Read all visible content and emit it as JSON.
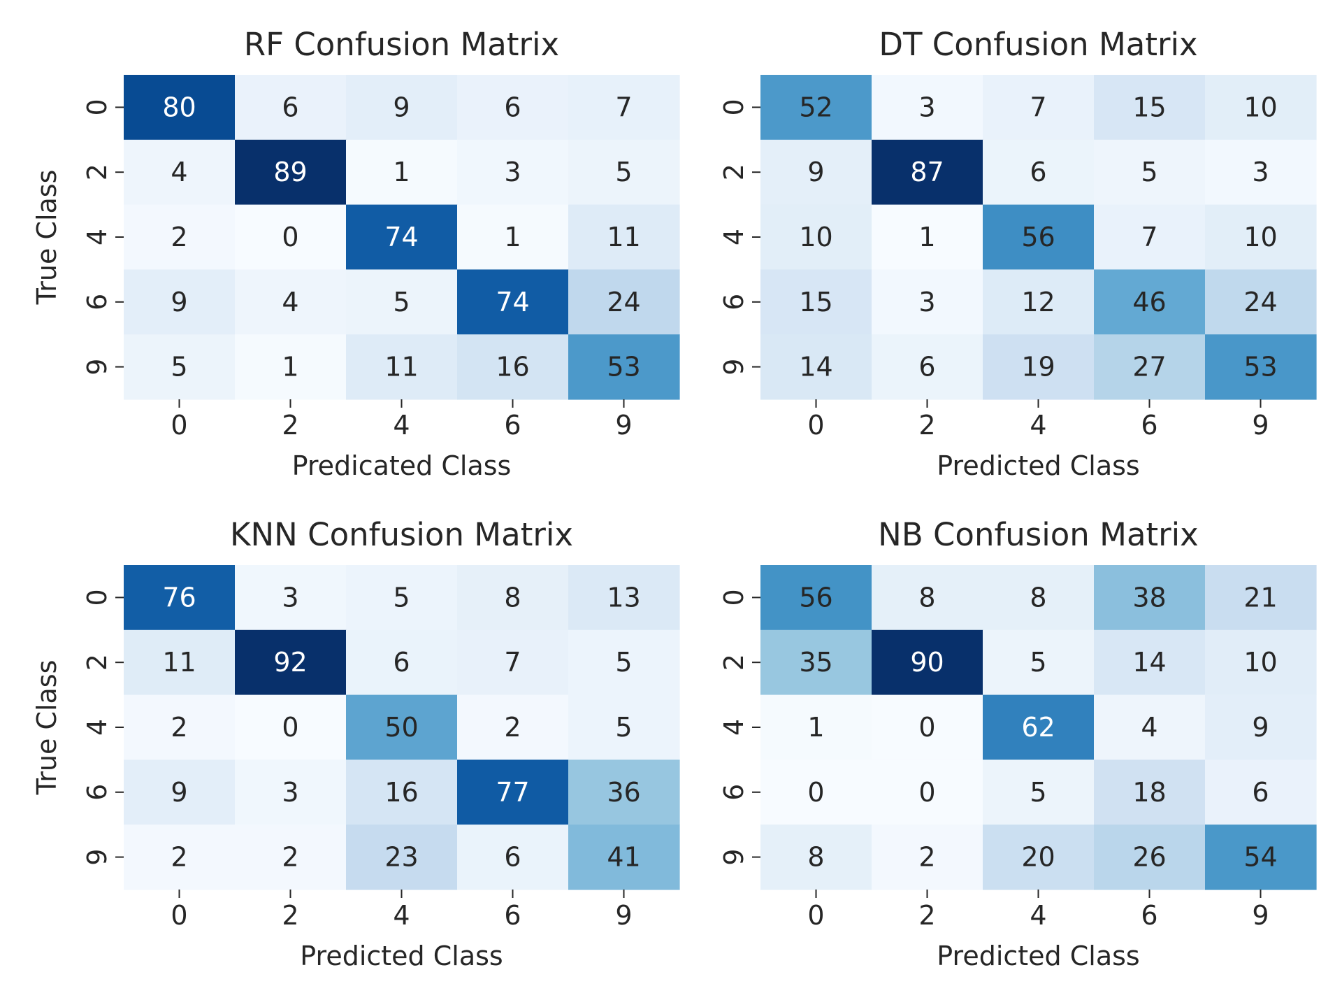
{
  "chart_data": [
    {
      "type": "heatmap",
      "title": "RF Confusion Matrix",
      "xlabel": "Predicated Class",
      "ylabel": "True Class",
      "x_ticks": [
        "0",
        "2",
        "4",
        "6",
        "9"
      ],
      "y_ticks": [
        "0",
        "2",
        "4",
        "6",
        "9"
      ],
      "colormap": "Blues",
      "colorbar": false,
      "values": [
        [
          80,
          6,
          9,
          6,
          7
        ],
        [
          4,
          89,
          1,
          3,
          5
        ],
        [
          2,
          0,
          74,
          1,
          11
        ],
        [
          9,
          4,
          5,
          74,
          24
        ],
        [
          5,
          1,
          11,
          16,
          53
        ]
      ]
    },
    {
      "type": "heatmap",
      "title": "DT Confusion Matrix",
      "xlabel": "Predicted Class",
      "ylabel": "",
      "x_ticks": [
        "0",
        "2",
        "4",
        "6",
        "9"
      ],
      "y_ticks": [
        "0",
        "2",
        "4",
        "6",
        "9"
      ],
      "colormap": "Blues",
      "colorbar": false,
      "values": [
        [
          52,
          3,
          7,
          15,
          10
        ],
        [
          9,
          87,
          6,
          5,
          3
        ],
        [
          10,
          1,
          56,
          7,
          10
        ],
        [
          15,
          3,
          12,
          46,
          24
        ],
        [
          14,
          6,
          19,
          27,
          53
        ]
      ]
    },
    {
      "type": "heatmap",
      "title": "KNN Confusion Matrix",
      "xlabel": "Predicted Class",
      "ylabel": "True Class",
      "x_ticks": [
        "0",
        "2",
        "4",
        "6",
        "9"
      ],
      "y_ticks": [
        "0",
        "2",
        "4",
        "6",
        "9"
      ],
      "colormap": "Blues",
      "colorbar": false,
      "values": [
        [
          76,
          3,
          5,
          8,
          13
        ],
        [
          11,
          92,
          6,
          7,
          5
        ],
        [
          2,
          0,
          50,
          2,
          5
        ],
        [
          9,
          3,
          16,
          77,
          36
        ],
        [
          2,
          2,
          23,
          6,
          41
        ]
      ]
    },
    {
      "type": "heatmap",
      "title": "NB Confusion Matrix",
      "xlabel": "Predicted Class",
      "ylabel": "",
      "x_ticks": [
        "0",
        "2",
        "4",
        "6",
        "9"
      ],
      "y_ticks": [
        "0",
        "2",
        "4",
        "6",
        "9"
      ],
      "colormap": "Blues",
      "colorbar": false,
      "values": [
        [
          56,
          8,
          8,
          38,
          21
        ],
        [
          35,
          90,
          5,
          14,
          10
        ],
        [
          1,
          0,
          62,
          4,
          9
        ],
        [
          0,
          0,
          5,
          18,
          6
        ],
        [
          8,
          2,
          20,
          26,
          54
        ]
      ]
    }
  ]
}
